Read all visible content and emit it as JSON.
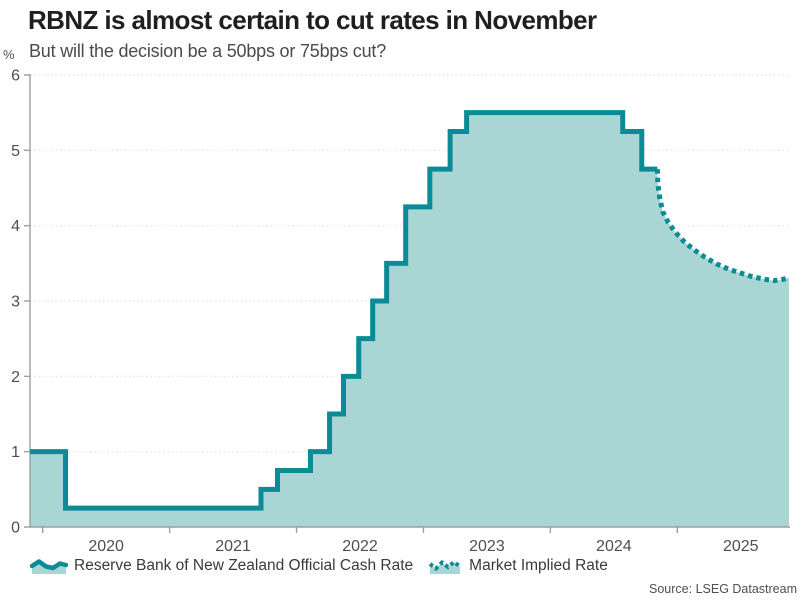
{
  "footer": {
    "source": "Source: LSEG Datastream"
  },
  "colors": {
    "line_teal": "#0b8b96",
    "fill_teal": "#a9d6d4",
    "swatch_fill": "#a9d6d4",
    "grid": "#dbe3e3",
    "axis": "#9e9e9e",
    "title_text": "#1f1f1f",
    "muted_text": "#4f4f4f"
  },
  "chart_data": {
    "type": "area",
    "title": "RBNZ is almost certain to cut rates in November",
    "subtitle": "But will the decision be a 50bps or 75bps cut?",
    "xlabel": "",
    "ylabel": "%",
    "xlim": [
      2019.9,
      2025.88
    ],
    "ylim": [
      0,
      6
    ],
    "y_ticks": [
      0,
      1,
      2,
      3,
      4,
      5,
      6
    ],
    "x_ticks": [
      2020,
      2021,
      2022,
      2023,
      2024,
      2025
    ],
    "grid": "dotted-horizontal",
    "legend_position": "bottom",
    "series": [
      {
        "name": "Reserve Bank of New Zealand Official Cash Rate",
        "style": "solid-step",
        "points": [
          [
            2019.9,
            1.0
          ],
          [
            2020.18,
            0.25
          ],
          [
            2021.72,
            0.5
          ],
          [
            2021.85,
            0.75
          ],
          [
            2022.11,
            1.0
          ],
          [
            2022.26,
            1.5
          ],
          [
            2022.37,
            2.0
          ],
          [
            2022.49,
            2.5
          ],
          [
            2022.6,
            3.0
          ],
          [
            2022.71,
            3.5
          ],
          [
            2022.86,
            4.25
          ],
          [
            2023.05,
            4.75
          ],
          [
            2023.21,
            5.25
          ],
          [
            2023.34,
            5.5
          ],
          [
            2024.57,
            5.25
          ],
          [
            2024.72,
            4.75
          ],
          [
            2024.843,
            4.75
          ]
        ]
      },
      {
        "name": "Market Implied Rate",
        "style": "dotted",
        "points": [
          [
            2024.843,
            4.75
          ],
          [
            2024.847,
            4.55
          ],
          [
            2024.863,
            4.35
          ],
          [
            2024.887,
            4.18
          ],
          [
            2024.926,
            4.05
          ],
          [
            2024.981,
            3.92
          ],
          [
            2025.052,
            3.79
          ],
          [
            2025.131,
            3.68
          ],
          [
            2025.218,
            3.58
          ],
          [
            2025.312,
            3.49
          ],
          [
            2025.407,
            3.42
          ],
          [
            2025.501,
            3.37
          ],
          [
            2025.596,
            3.32
          ],
          [
            2025.682,
            3.29
          ],
          [
            2025.761,
            3.27
          ],
          [
            2025.816,
            3.28
          ],
          [
            2025.88,
            3.31
          ]
        ]
      }
    ]
  }
}
